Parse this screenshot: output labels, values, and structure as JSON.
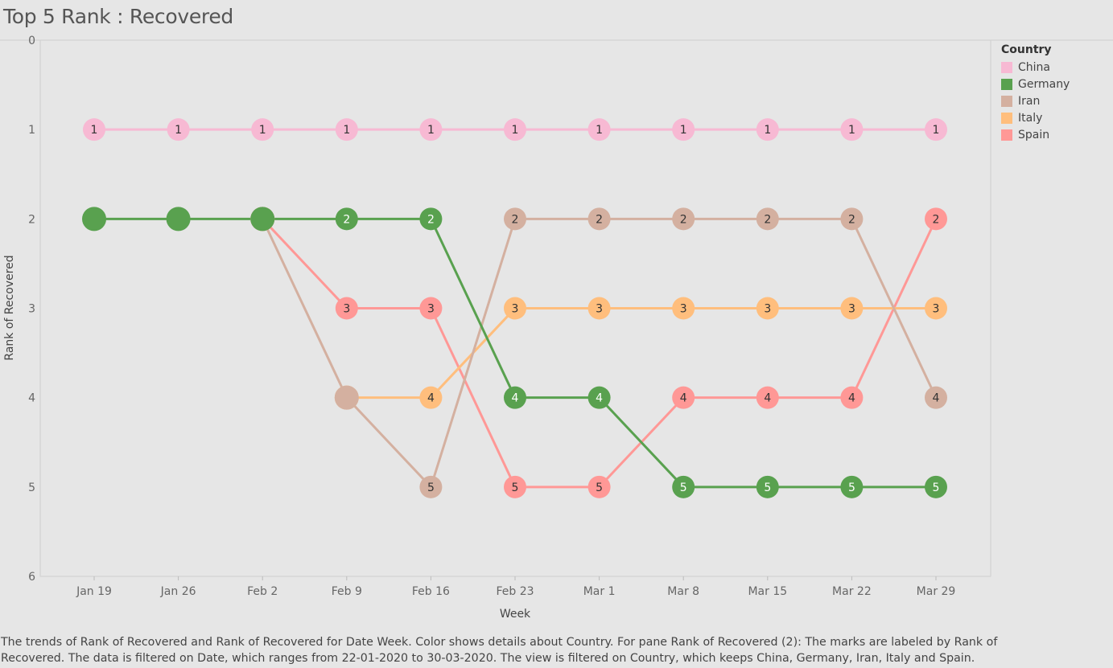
{
  "title": "Top 5 Rank : Recovered",
  "legend": {
    "title": "Country",
    "items": [
      {
        "label": "China",
        "color": "#f7b9d3"
      },
      {
        "label": "Germany",
        "color": "#59a14f"
      },
      {
        "label": "Iran",
        "color": "#d4b0a0"
      },
      {
        "label": "Italy",
        "color": "#ffbe7d"
      },
      {
        "label": "Spain",
        "color": "#ff9896"
      }
    ]
  },
  "caption": {
    "line1": "The trends of Rank of Recovered and Rank of Recovered for Date Week.  Color shows details about Country.  For pane Rank of Recovered (2):  The marks are labeled by Rank of",
    "line2": "Recovered. The data is filtered on Date, which ranges from 22-01-2020 to 30-03-2020. The view is filtered on Country, which keeps China, Germany, Iran, Italy and Spain."
  },
  "chart_data": {
    "type": "line",
    "title": "Top 5 Rank : Recovered",
    "xlabel": "Week",
    "ylabel": "Rank of Recovered",
    "categories": [
      "Jan 19",
      "Jan 26",
      "Feb 2",
      "Feb 9",
      "Feb 16",
      "Feb 23",
      "Mar 1",
      "Mar 8",
      "Mar 15",
      "Mar 22",
      "Mar 29"
    ],
    "ylim": [
      0,
      6
    ],
    "y_reversed": true,
    "yticks": [
      "0",
      "1",
      "2",
      "3",
      "4",
      "5",
      "6"
    ],
    "grid": false,
    "legend_position": "right",
    "series": [
      {
        "name": "China",
        "color": "#f7b9d3",
        "values": [
          1,
          1,
          1,
          1,
          1,
          1,
          1,
          1,
          1,
          1,
          1
        ],
        "labeled": [
          true,
          true,
          true,
          true,
          true,
          true,
          true,
          true,
          true,
          true,
          true
        ]
      },
      {
        "name": "Germany",
        "color": "#59a14f",
        "values": [
          2,
          2,
          2,
          2,
          2,
          4,
          4,
          5,
          5,
          5,
          5
        ],
        "labeled": [
          false,
          false,
          false,
          true,
          true,
          true,
          true,
          true,
          true,
          true,
          true
        ]
      },
      {
        "name": "Iran",
        "color": "#d4b0a0",
        "values": [
          null,
          null,
          2,
          4,
          5,
          2,
          2,
          2,
          2,
          2,
          4
        ],
        "labeled": [
          false,
          false,
          false,
          false,
          true,
          true,
          true,
          true,
          true,
          true,
          true
        ]
      },
      {
        "name": "Italy",
        "color": "#ffbe7d",
        "values": [
          null,
          null,
          null,
          4,
          4,
          3,
          3,
          3,
          3,
          3,
          3
        ],
        "labeled": [
          false,
          false,
          false,
          false,
          true,
          true,
          true,
          true,
          true,
          true,
          true
        ]
      },
      {
        "name": "Spain",
        "color": "#ff9896",
        "values": [
          null,
          null,
          2,
          3,
          3,
          5,
          5,
          4,
          4,
          4,
          2
        ],
        "labeled": [
          false,
          false,
          false,
          true,
          true,
          true,
          true,
          true,
          true,
          true,
          true
        ]
      }
    ]
  }
}
